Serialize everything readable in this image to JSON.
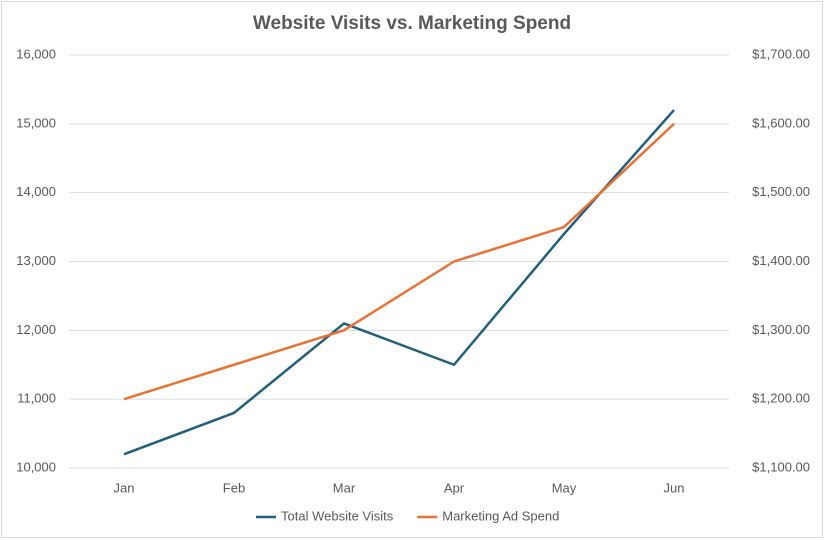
{
  "chart_data": {
    "type": "line",
    "title": "Website Visits vs. Marketing Spend",
    "categories": [
      "Jan",
      "Feb",
      "Mar",
      "Apr",
      "May",
      "Jun"
    ],
    "series": [
      {
        "name": "Total Website Visits",
        "color": "#215f7e",
        "values": [
          10200,
          10800,
          12100,
          11500,
          13400,
          15200
        ]
      },
      {
        "name": "Marketing Ad Spend",
        "color": "#e97132",
        "axis": "y2",
        "values": [
          1200,
          1250,
          1300,
          1400,
          1450,
          1600
        ]
      }
    ],
    "ylim": [
      10000,
      16000
    ],
    "yticks": [
      {
        "value": 10000,
        "label": "10,000"
      },
      {
        "value": 11000,
        "label": "11,000"
      },
      {
        "value": 12000,
        "label": "12,000"
      },
      {
        "value": 13000,
        "label": "13,000"
      },
      {
        "value": 14000,
        "label": "14,000"
      },
      {
        "value": 15000,
        "label": "15,000"
      },
      {
        "value": 16000,
        "label": "16,000"
      }
    ],
    "y2lim": [
      1100,
      1700
    ],
    "y2ticks": [
      {
        "value": 1100,
        "label": "$1,100.00"
      },
      {
        "value": 1200,
        "label": "$1,200.00"
      },
      {
        "value": 1300,
        "label": "$1,300.00"
      },
      {
        "value": 1400,
        "label": "$1,400.00"
      },
      {
        "value": 1500,
        "label": "$1,500.00"
      },
      {
        "value": 1600,
        "label": "$1,600.00"
      },
      {
        "value": 1700,
        "label": "$1,700.00"
      }
    ],
    "grid": true,
    "legend": "bottom"
  }
}
